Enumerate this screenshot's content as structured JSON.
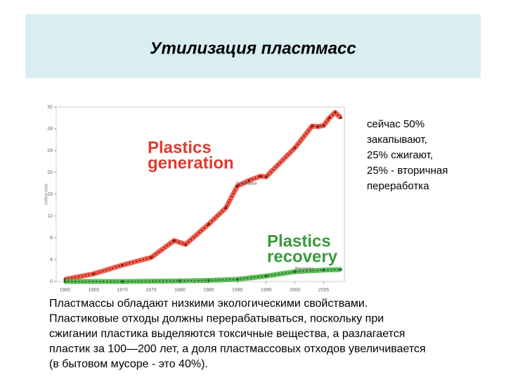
{
  "slide_title": "Утилизация пластмасс",
  "side_note": [
    "сейчас 50%",
    "закапывают,",
    "25% сжигают,",
    "25% - вторичная",
    "переработка"
  ],
  "body_text": [
    "Пластмассы обладают низкими экологическими свойствами.",
    "Пластиковые отходы должны перерабатываться, поскольку при",
    "сжигании пластика выделяются токсичные вещества, а разлагается",
    "пластик за 100—200 лет, а доля пластмассовых отходов увеличивается",
    "(в бытовом мусоре - это 40%)."
  ],
  "chart_data": {
    "type": "line",
    "y_label": "million tons",
    "annotations": {
      "generation_big": [
        "Plastics",
        "generation"
      ],
      "recovery_big": [
        "Plastics",
        "recovery"
      ],
      "generation_small": "Generation",
      "recovery_small": "Recovery"
    },
    "xlim": [
      1958.5,
      2008.6
    ],
    "xticks": [
      1960,
      1965,
      1970,
      1975,
      1980,
      1985,
      1990,
      1995,
      2000,
      2005
    ],
    "ylim": [
      0,
      32
    ],
    "yticks": [
      0,
      4,
      8,
      12,
      16,
      20,
      24,
      28,
      32
    ],
    "series": [
      {
        "name": "Generation",
        "color": "#ef4b3a",
        "x": [
          1960,
          1965,
          1970,
          1975,
          1979,
          1981,
          1985,
          1988,
          1990,
          1992,
          1994,
          1995,
          2000,
          2003,
          2004,
          2005,
          2006,
          2007,
          2008
        ],
        "values": [
          0.4,
          1.4,
          3.0,
          4.4,
          7.5,
          6.8,
          10.5,
          13.5,
          17.5,
          18.5,
          19.3,
          19.2,
          24.5,
          28.5,
          28.4,
          28.6,
          30,
          31,
          30
        ]
      },
      {
        "name": "Recovery",
        "color": "#4cb648",
        "x": [
          1960,
          1970,
          1980,
          1985,
          1990,
          1995,
          2000,
          2005,
          2008
        ],
        "values": [
          0,
          0,
          0.1,
          0.2,
          0.4,
          1.0,
          1.8,
          2.1,
          2.2
        ]
      }
    ]
  }
}
